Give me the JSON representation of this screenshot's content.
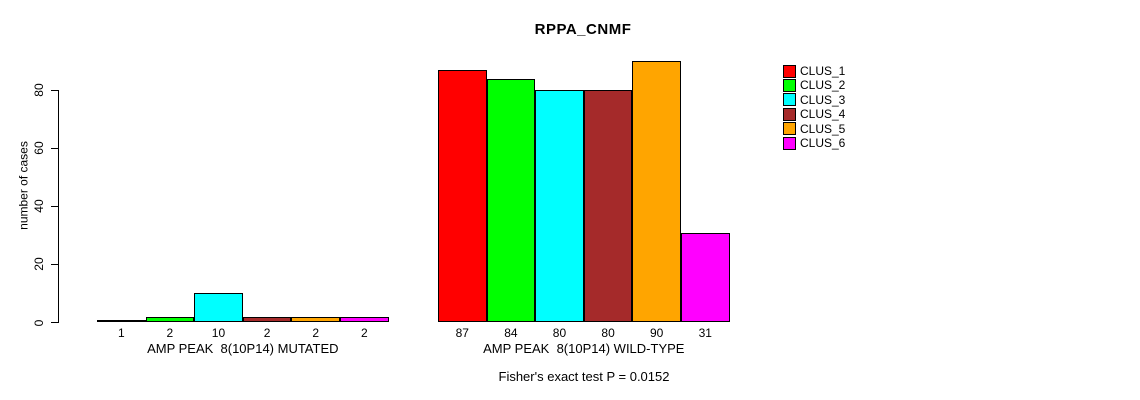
{
  "chart_data": {
    "type": "bar",
    "title": "RPPA_CNMF",
    "ylabel": "number of cases",
    "xlabel": "",
    "ylim": [
      0,
      90
    ],
    "yticks": [
      0,
      20,
      40,
      60,
      80
    ],
    "grid": false,
    "legend_position": "right",
    "bar_border_color": "#000000",
    "background_color": "#ffffff",
    "legend": [
      {
        "label": "CLUS_1",
        "color": "#FF0000"
      },
      {
        "label": "CLUS_2",
        "color": "#00FF00"
      },
      {
        "label": "CLUS_3",
        "color": "#00FFFF"
      },
      {
        "label": "CLUS_4",
        "color": "#A52A2A"
      },
      {
        "label": "CLUS_5",
        "color": "#FFA500"
      },
      {
        "label": "CLUS_6",
        "color": "#FF00FF"
      }
    ],
    "groups": [
      {
        "label": "AMP PEAK  8(10P14) MUTATED",
        "values": [
          1,
          2,
          10,
          2,
          2,
          2
        ]
      },
      {
        "label": "AMP PEAK  8(10P14) WILD-TYPE",
        "values": [
          87,
          84,
          80,
          80,
          90,
          31
        ]
      }
    ],
    "annotation": "Fisher's exact test P = 0.0152"
  }
}
